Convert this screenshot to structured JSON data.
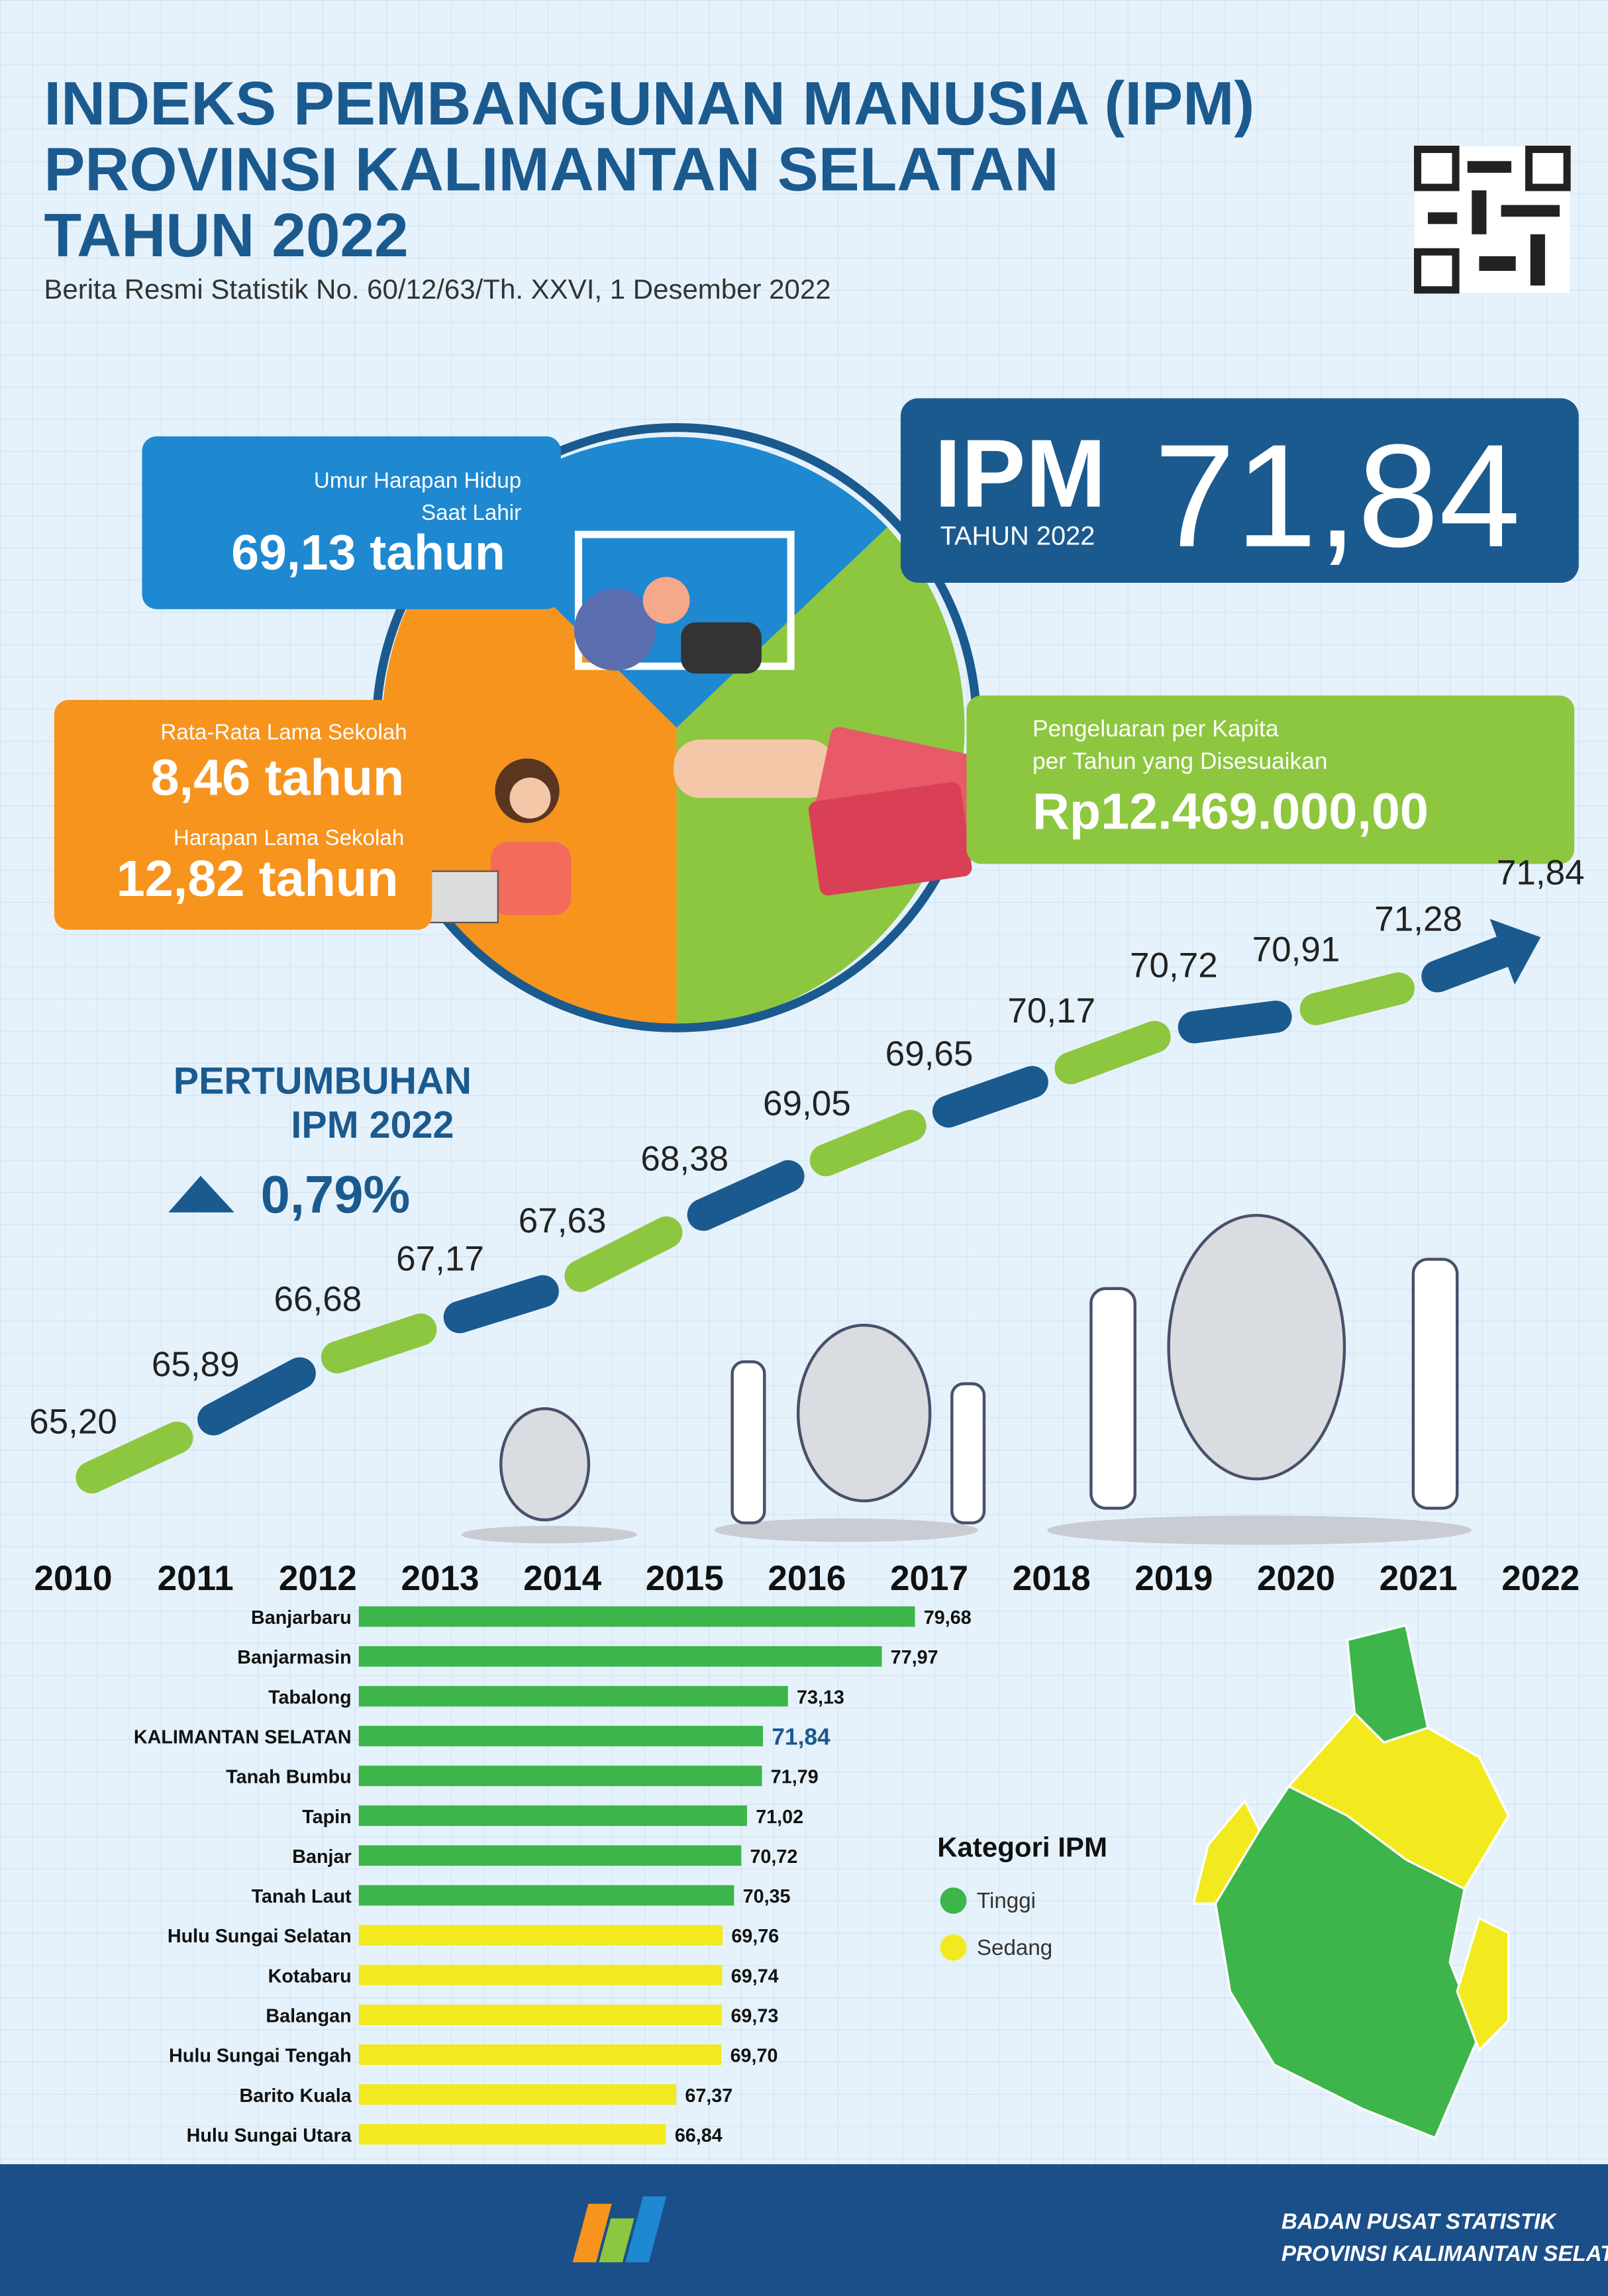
{
  "header": {
    "title_lines": [
      "INDEKS PEMBANGUNAN MANUSIA (IPM)",
      "PROVINSI KALIMANTAN SELATAN",
      "TAHUN 2022"
    ],
    "subtitle": "Berita Resmi Statistik No. 60/12/63/Th. XXVI, 1 Desember 2022"
  },
  "ipm": {
    "label": "IPM",
    "year": "TAHUN 2022",
    "value": "71,84"
  },
  "components": {
    "life_expectancy": {
      "label_lines": [
        "Umur Harapan Hidup",
        "Saat Lahir"
      ],
      "value": "69,13 tahun"
    },
    "mean_schooling": {
      "label": "Rata-Rata Lama Sekolah",
      "value": "8,46 tahun"
    },
    "expected_schooling": {
      "label": "Harapan Lama Sekolah",
      "value": "12,82 tahun"
    },
    "expenditure": {
      "label_lines": [
        "Pengeluaran per Kapita",
        "per Tahun yang Disesuaikan"
      ],
      "value": "Rp12.469.000,00"
    }
  },
  "growth": {
    "label_lines": [
      "PERTUMBUHAN",
      "IPM 2022"
    ],
    "value": "0,79%"
  },
  "chart_data": [
    {
      "type": "line",
      "categories": [
        "2010",
        "2011",
        "2012",
        "2013",
        "2014",
        "2015",
        "2016",
        "2017",
        "2018",
        "2019",
        "2020",
        "2021",
        "2022"
      ],
      "values": [
        65.2,
        65.89,
        66.68,
        67.17,
        67.63,
        68.38,
        69.05,
        69.65,
        70.17,
        70.72,
        70.91,
        71.28,
        71.84
      ],
      "value_labels": [
        "65,20",
        "65,89",
        "66,68",
        "67,17",
        "67,63",
        "68,38",
        "69,05",
        "69,65",
        "70,17",
        "70,72",
        "70,91",
        "71,28",
        "71,84"
      ],
      "colors": [
        "#8dc63f",
        "#1b5a8e"
      ],
      "ylim": [
        64.4,
        72.55
      ]
    },
    {
      "type": "hbar",
      "categories": [
        "Banjarbaru",
        "Banjarmasin",
        "Tabalong",
        "KALIMANTAN SELATAN",
        "Tanah Bumbu",
        "Tapin",
        "Banjar",
        "Tanah Laut",
        "Hulu Sungai Selatan",
        "Kotabaru",
        "Balangan",
        "Hulu Sungai Tengah",
        "Barito Kuala",
        "Hulu Sungai Utara"
      ],
      "values": [
        79.68,
        77.97,
        73.13,
        71.84,
        71.79,
        71.02,
        70.72,
        70.35,
        69.76,
        69.74,
        69.73,
        69.7,
        67.37,
        66.84
      ],
      "value_labels": [
        "79,68",
        "77,97",
        "73,13",
        "71,84",
        "71,79",
        "71,02",
        "70,72",
        "70,35",
        "69,76",
        "69,74",
        "69,73",
        "69,70",
        "67,37",
        "66,84"
      ],
      "colors": [
        "#3db54a",
        "#3db54a",
        "#3db54a",
        "#3db54a",
        "#3db54a",
        "#3db54a",
        "#3db54a",
        "#3db54a",
        "#f2ea1f",
        "#f2ea1f",
        "#f2ea1f",
        "#f2ea1f",
        "#f2ea1f",
        "#f2ea1f"
      ],
      "highlight_index": 3,
      "xlim": [
        51,
        80
      ],
      "legend": {
        "title": "Kategori IPM",
        "items": [
          {
            "name": "Tinggi",
            "color": "#3db54a"
          },
          {
            "name": "Sedang",
            "color": "#f2ea1f"
          }
        ]
      }
    }
  ],
  "footer": {
    "lines": [
      "BADAN PUSAT STATISTIK",
      "PROVINSI KALIMANTAN SELATAN"
    ]
  }
}
